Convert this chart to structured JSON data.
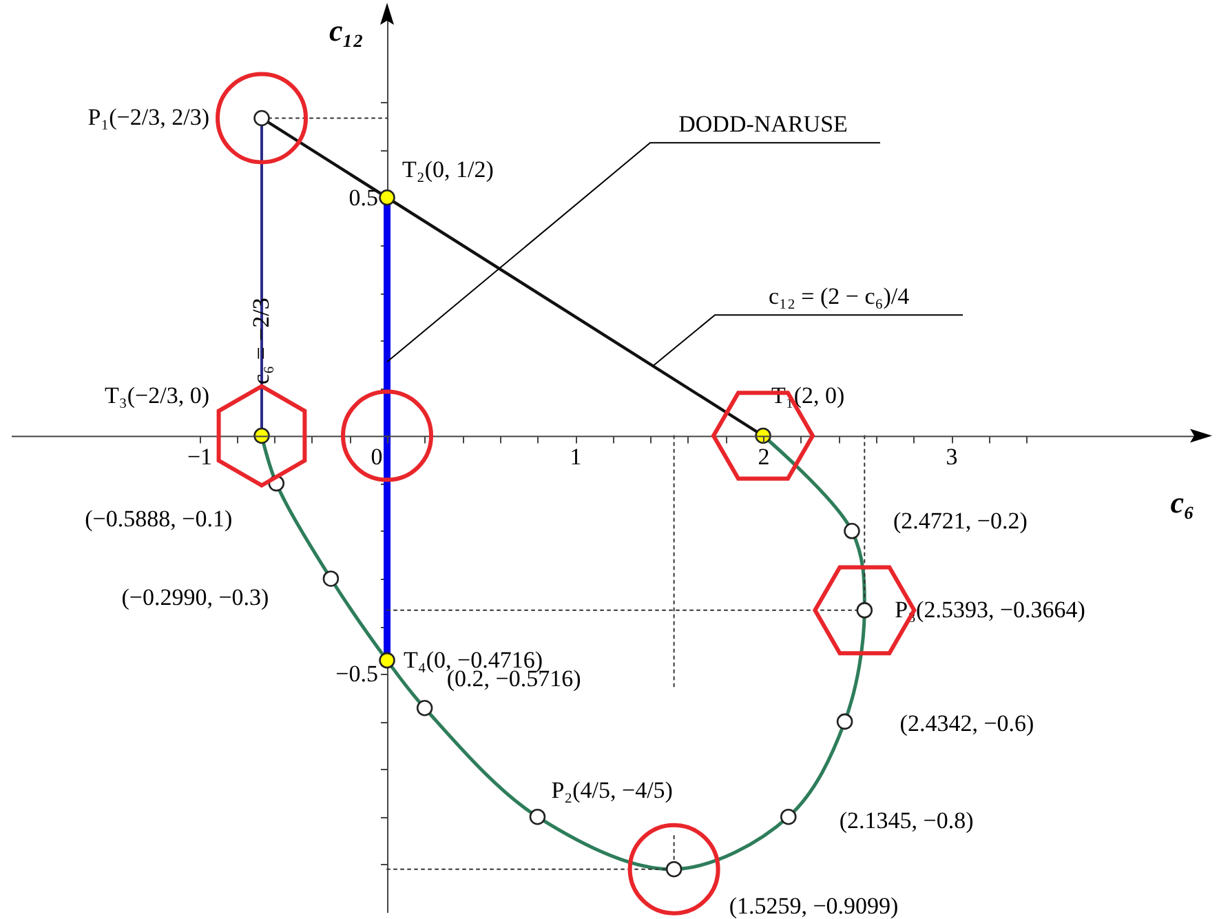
{
  "chart_data": {
    "type": "line",
    "xlabel": "c₆",
    "ylabel": "c₁₂",
    "xlim": [
      -2.0,
      4.3
    ],
    "ylim": [
      -1.0,
      0.88
    ],
    "xticks": [
      {
        "value": -1,
        "label": "−1"
      },
      {
        "value": -0.8,
        "label": null
      },
      {
        "value": -0.6,
        "label": null
      },
      {
        "value": -0.4,
        "label": null
      },
      {
        "value": -0.2,
        "label": null
      },
      0,
      {
        "value": 0.2,
        "label": null
      },
      {
        "value": 0.4,
        "label": null
      },
      {
        "value": 0.6,
        "label": null
      },
      {
        "value": 0.8,
        "label": null
      },
      1,
      {
        "value": 1.2,
        "label": null
      },
      {
        "value": 1.4,
        "label": null
      },
      {
        "value": 1.6,
        "label": null
      },
      {
        "value": 1.8,
        "label": null
      },
      2,
      {
        "value": 2.2,
        "label": null
      },
      {
        "value": 2.4,
        "label": null
      },
      {
        "value": 2.6,
        "label": null
      },
      {
        "value": 2.8,
        "label": null
      },
      3,
      {
        "value": 3.2,
        "label": null
      },
      {
        "value": 3.4,
        "label": null
      }
    ],
    "yticks": [
      {
        "value": -0.9,
        "label": null
      },
      {
        "value": -0.8,
        "label": null
      },
      {
        "value": -0.7,
        "label": null
      },
      {
        "value": -0.6,
        "label": null
      },
      {
        "value": -0.5,
        "label": "−0.5"
      },
      {
        "value": -0.4,
        "label": null
      },
      {
        "value": -0.3,
        "label": null
      },
      {
        "value": -0.2,
        "label": null
      },
      {
        "value": -0.1,
        "label": null
      },
      {
        "value": 0.1,
        "label": null
      },
      {
        "value": 0.2,
        "label": null
      },
      {
        "value": 0.3,
        "label": null
      },
      {
        "value": 0.4,
        "label": null
      },
      0.5,
      {
        "value": 0.6,
        "label": null
      },
      {
        "value": 0.7,
        "label": null
      }
    ],
    "series": [
      {
        "type": "line",
        "color": "#2e7d5b",
        "x": [
          -0.6667,
          -0.5888,
          -0.299,
          0,
          0.2,
          0.8,
          1.5259,
          2.1345,
          2.4342,
          2.5393,
          2.4721,
          2
        ],
        "values": [
          0,
          -0.1,
          -0.3,
          -0.4716,
          -0.5716,
          -0.8,
          -0.9099,
          -0.8,
          -0.6,
          -0.3664,
          -0.2,
          0
        ]
      },
      {
        "type": "line",
        "color": "#111111",
        "x": [
          -0.6667,
          2
        ],
        "values": [
          0.6667,
          0
        ]
      },
      {
        "type": "line",
        "color": "#2b2b8c",
        "x": [
          -0.6667,
          -0.6667
        ],
        "values": [
          0.6667,
          0
        ]
      },
      {
        "type": "line",
        "color": "#0000ee",
        "x": [
          0,
          0
        ],
        "values": [
          0.5,
          -0.4716
        ]
      },
      {
        "type": "line",
        "color": "#333333",
        "line_style": "dotted",
        "x": [
          -0.6667,
          0
        ],
        "values": [
          0.6667,
          0.6667
        ]
      },
      {
        "type": "line",
        "color": "#333333",
        "line_style": "dotted",
        "x": [
          0,
          2.5393
        ],
        "values": [
          -0.3664,
          -0.3664
        ]
      },
      {
        "type": "line",
        "color": "#333333",
        "line_style": "dotted",
        "x": [
          2.5393,
          2.5393
        ],
        "values": [
          0,
          -0.3664
        ]
      },
      {
        "type": "line",
        "color": "#333333",
        "line_style": "dotted",
        "x": [
          0,
          1.5259
        ],
        "values": [
          -0.9099,
          -0.9099
        ]
      },
      {
        "type": "line",
        "color": "#333333",
        "line_style": "dotted",
        "x": [
          1.5259,
          1.5259
        ],
        "values": [
          0,
          -0.53
        ]
      },
      {
        "type": "line",
        "color": "#333333",
        "line_style": "dotted",
        "x": [
          1.5259,
          1.5259
        ],
        "values": [
          -0.84,
          -0.9099
        ]
      },
      {
        "type": "scatter",
        "marker": "circle",
        "color": "#ffffff",
        "x": [
          -0.6667,
          -0.5888,
          -0.299,
          0.2,
          0.8,
          1.5259,
          2.1345,
          2.4342,
          2.5393,
          2.4721
        ],
        "values": [
          0.6667,
          -0.1,
          -0.3,
          -0.5716,
          -0.8,
          -0.9099,
          -0.8,
          -0.6,
          -0.3664,
          -0.2
        ]
      },
      {
        "type": "scatter",
        "marker": "circle",
        "color": "#ffff00",
        "x": [
          2,
          0,
          -0.6667,
          0
        ],
        "values": [
          0,
          0.5,
          0,
          -0.4716
        ]
      }
    ],
    "annotations": [
      {
        "text": "P₁(−2/3, 2/3)",
        "x": -0.6667,
        "y": 0.6667
      },
      {
        "text": "T₂(0, 1/2)",
        "x": 0,
        "y": 0.5
      },
      {
        "text": "T₃(−2/3, 0)",
        "x": -0.6667,
        "y": 0
      },
      {
        "text": "T₁(2, 0)",
        "x": 2,
        "y": 0
      },
      {
        "text": "(−0.5888, −0.1)",
        "x": -0.5888,
        "y": -0.1
      },
      {
        "text": "(−0.2990, −0.3)",
        "x": -0.299,
        "y": -0.3
      },
      {
        "text": "T₄(0, −0.4716)",
        "x": 0,
        "y": -0.4716
      },
      {
        "text": "(0.2, −0.5716)",
        "x": 0.2,
        "y": -0.5716
      },
      {
        "text": "P₂(4/5, −4/5)",
        "x": 0.8,
        "y": -0.8
      },
      {
        "text": "(1.5259, −0.9099)",
        "x": 1.5259,
        "y": -0.9099
      },
      {
        "text": "(2.1345, −0.8)",
        "x": 2.1345,
        "y": -0.8
      },
      {
        "text": "(2.4342, −0.6)",
        "x": 2.4342,
        "y": -0.6
      },
      {
        "text": "P₃(2.5393, −0.3664)",
        "x": 2.5393,
        "y": -0.3664
      },
      {
        "text": "(2.4721, −0.2)",
        "x": 2.4721,
        "y": -0.2
      },
      {
        "text": "c₆ = −2/3",
        "x": -0.6667,
        "y": 0.3
      },
      {
        "text": "DODD-NARUSE",
        "x": 0,
        "y": 0.155
      },
      {
        "text": "c₁₂ = (2 − c₆)/4",
        "x": 1.414,
        "y": 0.1465
      }
    ]
  }
}
